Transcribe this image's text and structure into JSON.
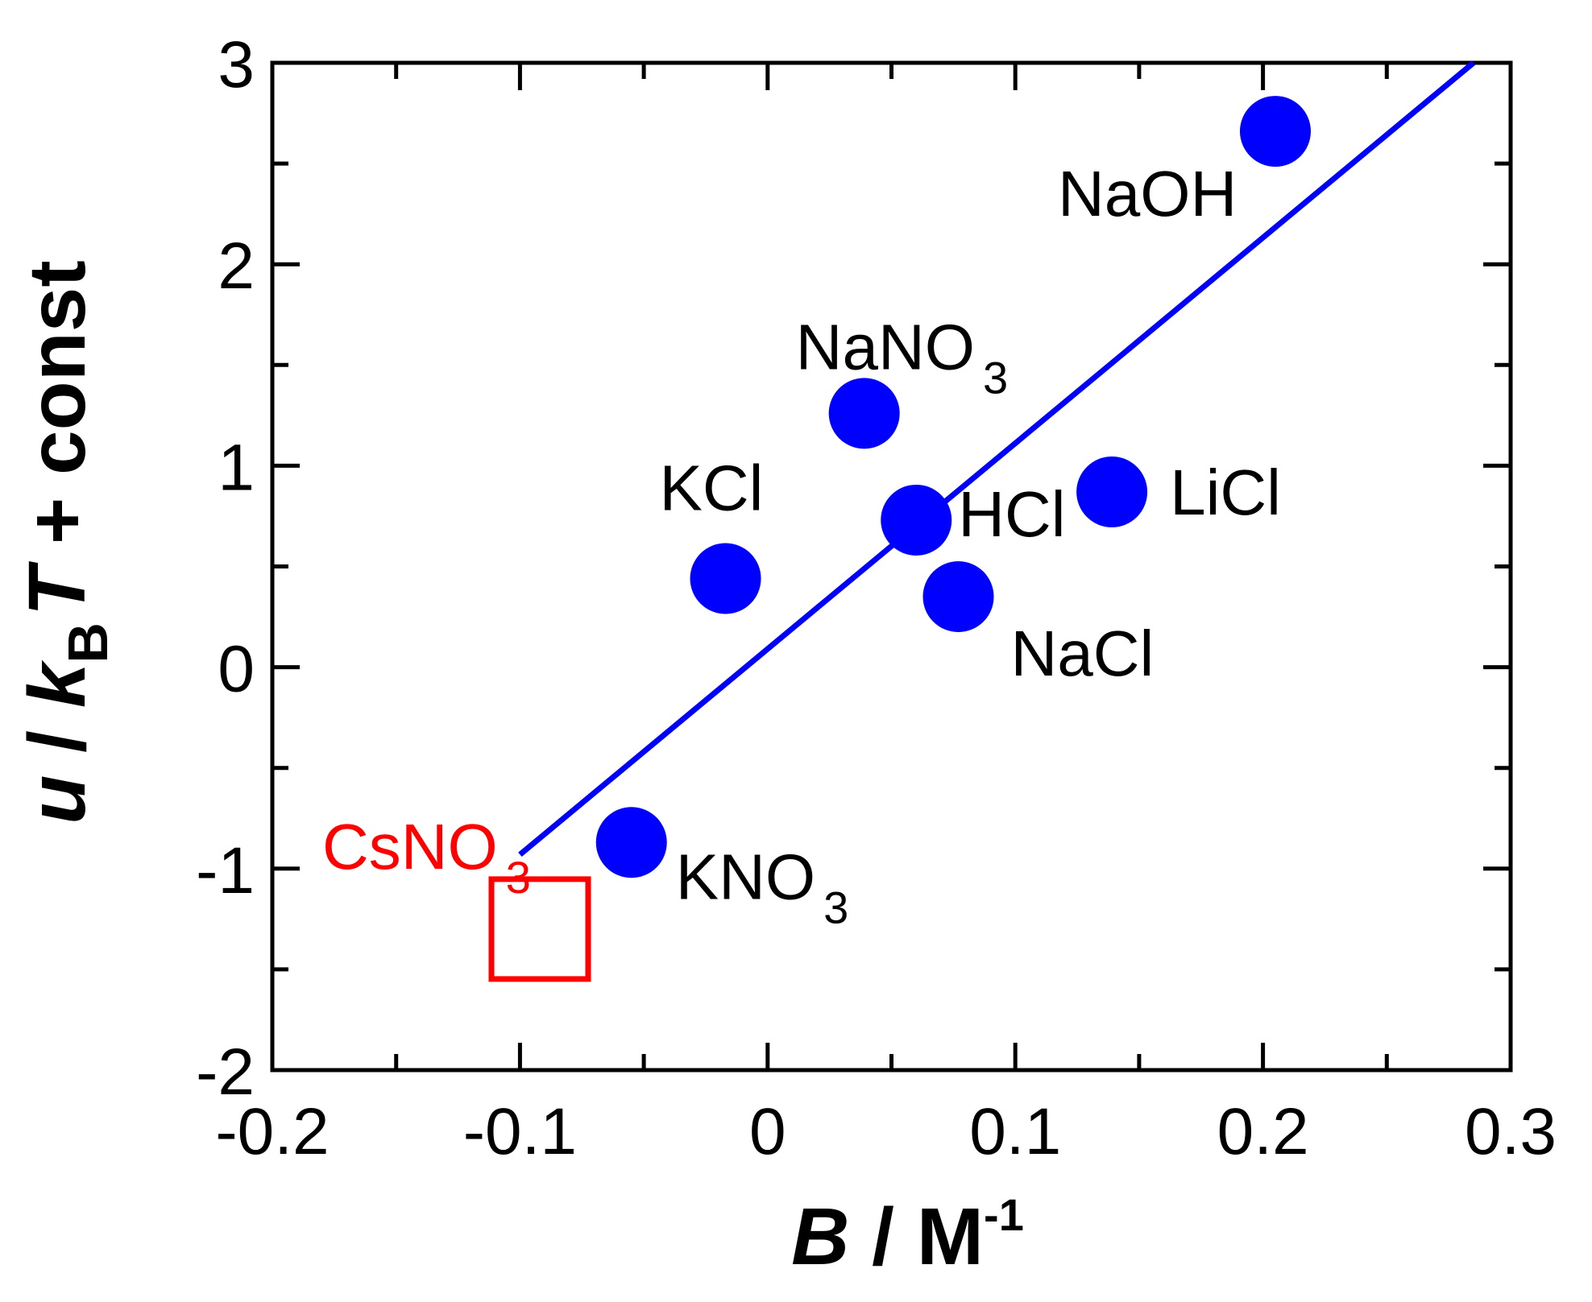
{
  "chart_data": {
    "type": "scatter",
    "xlabel": {
      "var": "B",
      "sep": " / ",
      "unit": "M",
      "sup": "-1"
    },
    "ylabel": {
      "var1": "u",
      "sep1": " / ",
      "var2": "k",
      "sub": "B",
      "var3": "T",
      "rest": " + const"
    },
    "xlim": [
      -0.2,
      0.3
    ],
    "ylim": [
      -2,
      3
    ],
    "x_ticks": [
      -0.2,
      -0.1,
      0,
      0.1,
      0.2,
      0.3
    ],
    "x_tick_labels": [
      "-0.2",
      "-0.1",
      "0",
      "0.1",
      "0.2",
      "0.3"
    ],
    "y_ticks": [
      -2,
      -1,
      0,
      1,
      2,
      3
    ],
    "y_tick_labels": [
      "-2",
      "-1",
      "0",
      "1",
      "2",
      "3"
    ],
    "series": [
      {
        "marker": "circle",
        "color": "#0000ff",
        "points": [
          {
            "base": "NaOH",
            "x": 0.205,
            "y": 2.66
          },
          {
            "base": "NaNO",
            "sub": "3",
            "x": 0.039,
            "y": 1.26
          },
          {
            "base": "KCl",
            "x": -0.017,
            "y": 0.44
          },
          {
            "base": "HCl",
            "x": 0.06,
            "y": 0.73
          },
          {
            "base": "LiCl",
            "x": 0.139,
            "y": 0.87
          },
          {
            "base": "NaCl",
            "x": 0.077,
            "y": 0.35
          },
          {
            "base": "KNO",
            "sub": "3",
            "x": -0.055,
            "y": -0.87
          }
        ]
      },
      {
        "marker": "square",
        "color": "#ff0000",
        "points": [
          {
            "base": "CsNO",
            "sub": "3",
            "x": -0.092,
            "y": -1.3
          }
        ]
      }
    ],
    "fit_line": {
      "color": "#0000ff",
      "x": [
        -0.1,
        0.285
      ],
      "y": [
        -0.93,
        3.0
      ]
    }
  }
}
